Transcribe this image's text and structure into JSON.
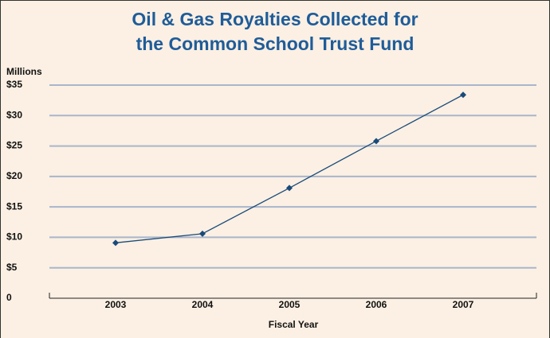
{
  "chart_data": {
    "type": "line",
    "title": [
      "Oil & Gas Royalties Collected for",
      "the Common School Trust Fund"
    ],
    "y_axis_label": "Millions",
    "x_axis_label": "Fiscal Year",
    "categories": [
      "2003",
      "2004",
      "2005",
      "2006",
      "2007"
    ],
    "values": [
      9.1,
      10.6,
      18.1,
      25.8,
      33.4
    ],
    "color": "#1a4a7a",
    "ylim": [
      0,
      35
    ],
    "yticks": [
      0,
      {
        "value": 5,
        "label": "$5"
      },
      {
        "value": 10,
        "label": "$10"
      },
      {
        "value": 15,
        "label": "$15"
      },
      {
        "value": 20,
        "label": "$20"
      },
      {
        "value": 25,
        "label": "$25"
      },
      {
        "value": 30,
        "label": "$30"
      },
      {
        "value": 35,
        "label": "$35"
      }
    ],
    "grid": true
  }
}
